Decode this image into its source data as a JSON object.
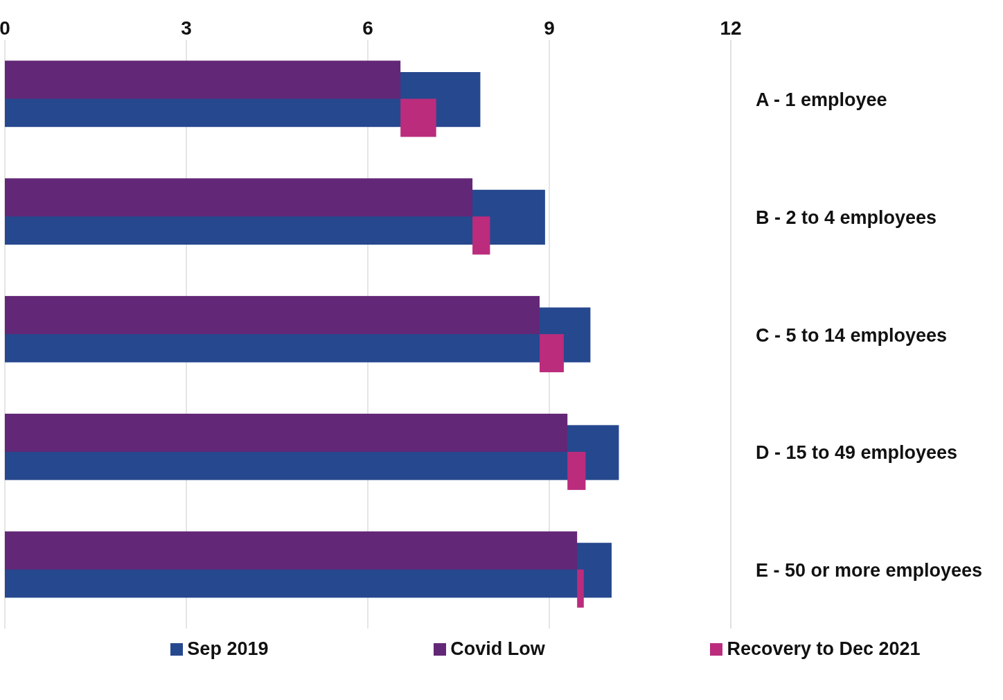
{
  "chart_data": {
    "type": "bar",
    "orientation": "horizontal",
    "categories": [
      "A - 1 employee",
      "B - 2 to 4 employees",
      "C - 5 to 14 employees",
      "D - 15 to 49 employees",
      "E - 50 or more employees"
    ],
    "series": [
      {
        "name": "Sep 2019",
        "color": "#26488e",
        "values": [
          7.86,
          8.93,
          9.68,
          10.15,
          10.03
        ]
      },
      {
        "name": "Covid Low",
        "color": "#632777",
        "values": [
          6.54,
          7.73,
          8.84,
          9.3,
          9.46
        ]
      },
      {
        "name": "Recovery to Dec 2021",
        "color": "#bb2c7d",
        "base": [
          6.54,
          7.73,
          8.84,
          9.3,
          9.46
        ],
        "values": [
          0.59,
          0.29,
          0.4,
          0.3,
          0.11
        ]
      }
    ],
    "xlim": [
      0,
      12
    ],
    "xticks": [
      0,
      3,
      6,
      9,
      12
    ],
    "grid": "x",
    "legend": "bottom"
  }
}
